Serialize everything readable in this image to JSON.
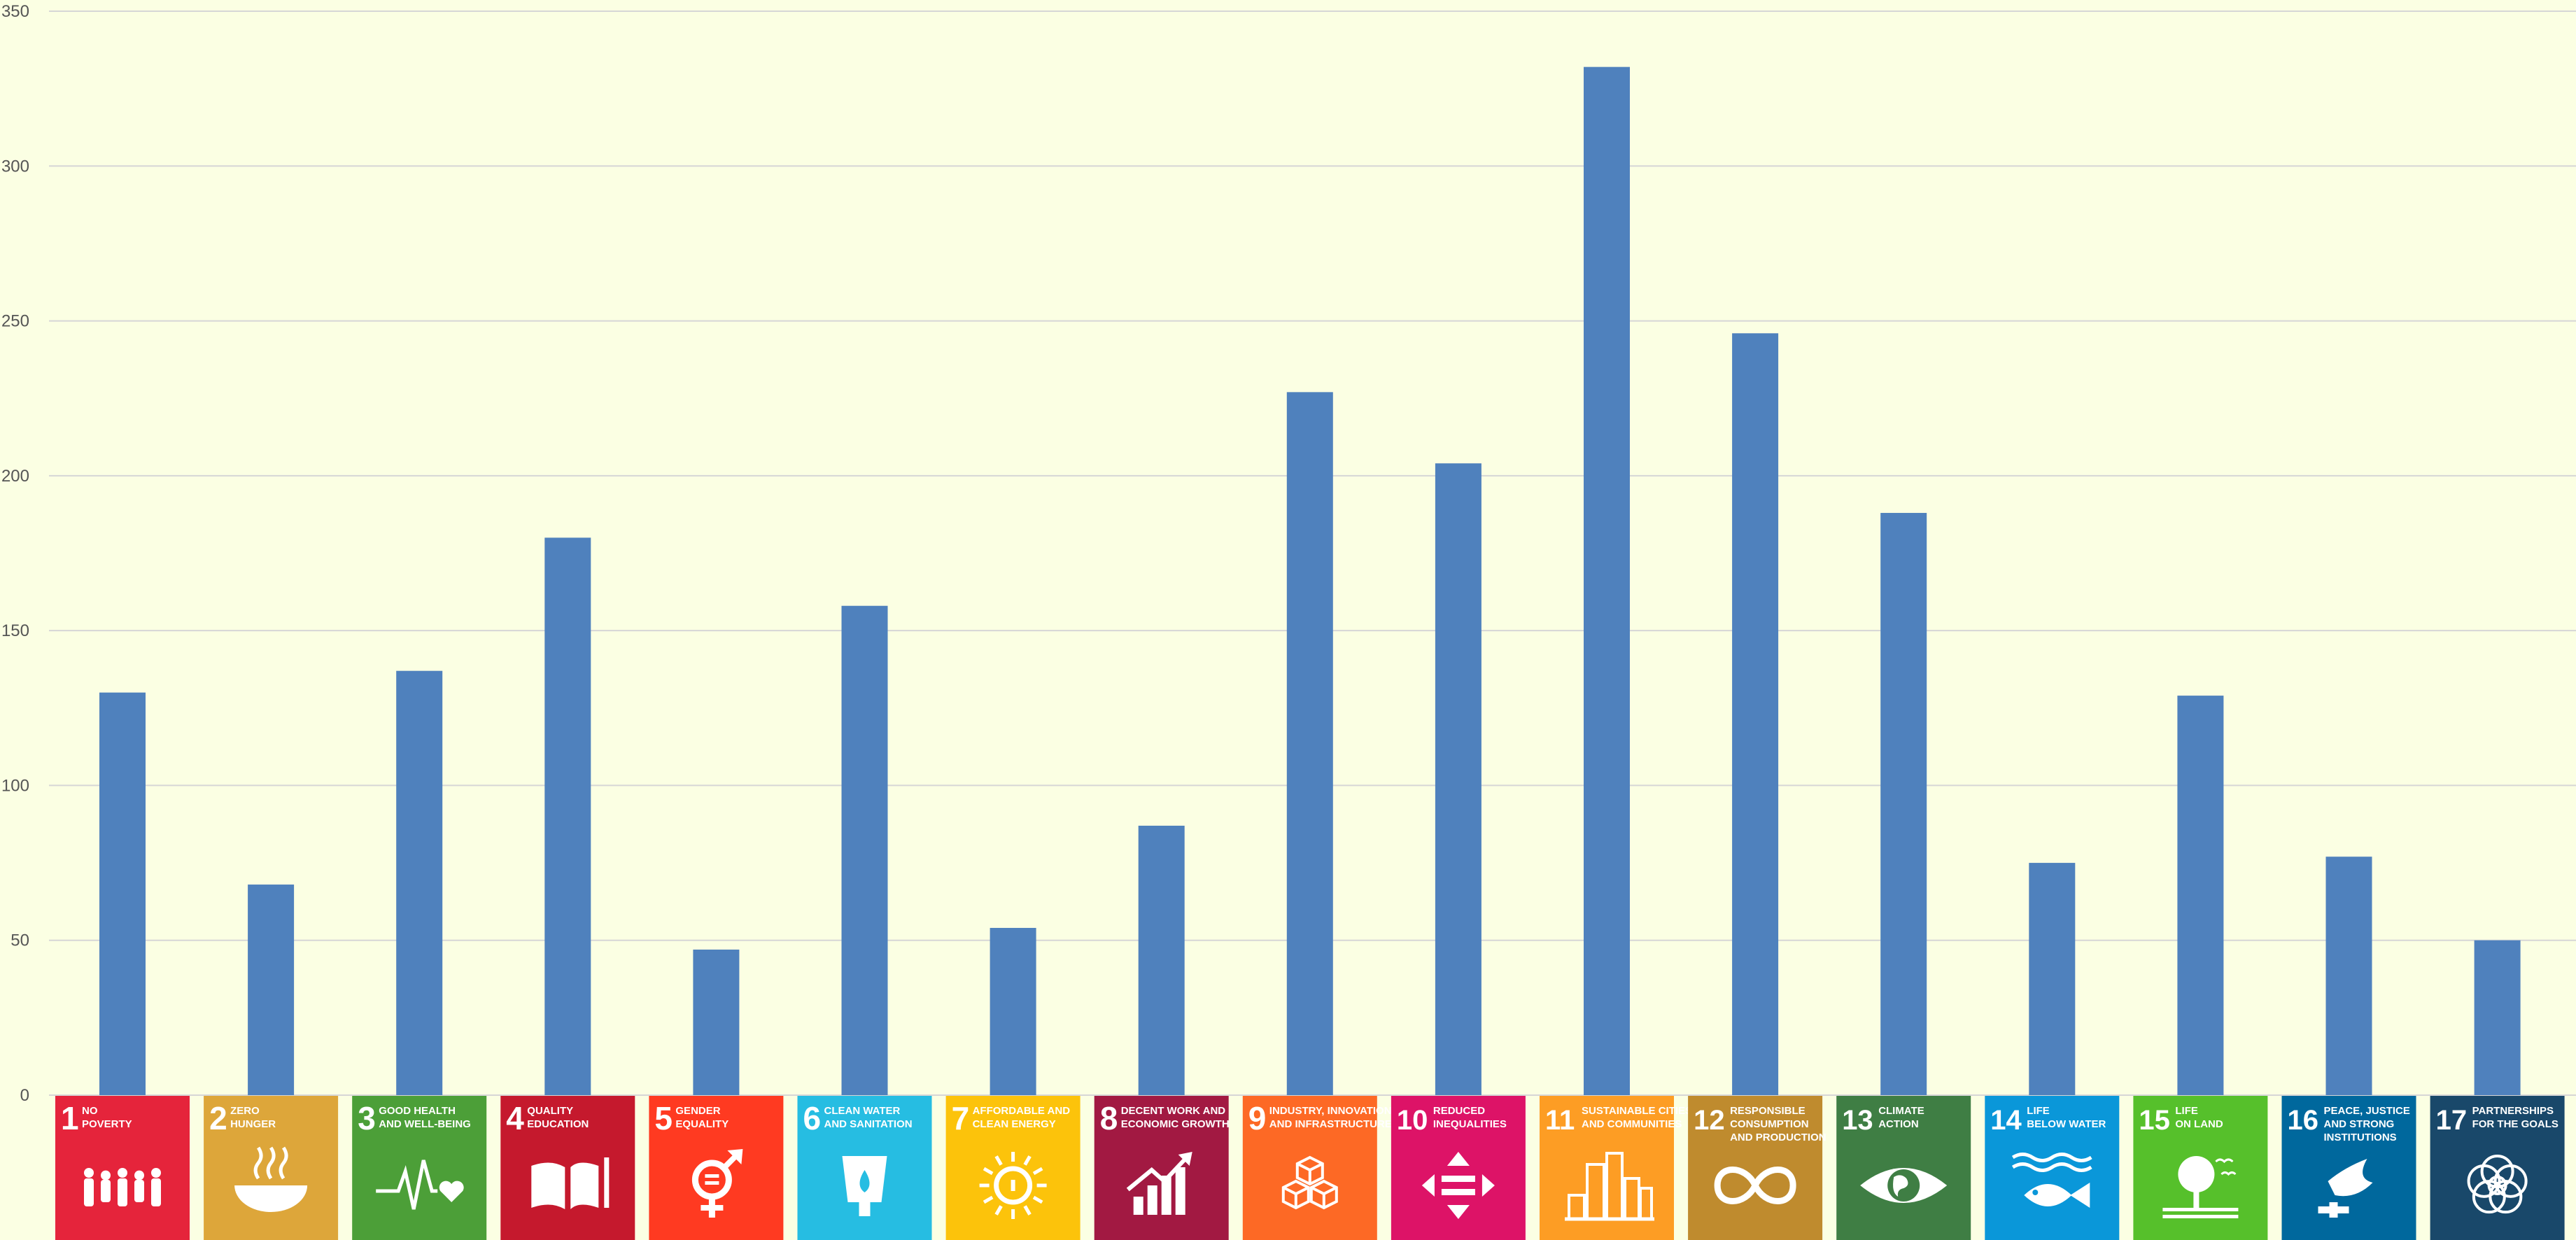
{
  "chart_data": {
    "type": "bar",
    "categories": [
      "1",
      "2",
      "3",
      "4",
      "5",
      "6",
      "7",
      "8",
      "9",
      "10",
      "11",
      "12",
      "13",
      "14",
      "15",
      "16",
      "17"
    ],
    "values": [
      130,
      68,
      137,
      180,
      47,
      158,
      54,
      87,
      227,
      204,
      332,
      246,
      188,
      75,
      129,
      77,
      50
    ],
    "ylim": [
      0,
      350
    ],
    "yticks": [
      0,
      50,
      100,
      150,
      200,
      250,
      300,
      350
    ],
    "grid": true,
    "bar_color": "#4f81bd"
  },
  "goals": [
    {
      "number": "1",
      "title": [
        "NO",
        "POVERTY"
      ],
      "color": "#e5243b",
      "icon": "family-icon"
    },
    {
      "number": "2",
      "title": [
        "ZERO",
        "HUNGER"
      ],
      "color": "#dda63a",
      "icon": "bowl-icon"
    },
    {
      "number": "3",
      "title": [
        "GOOD HEALTH",
        "AND WELL-BEING"
      ],
      "color": "#4c9f38",
      "icon": "heartbeat-icon"
    },
    {
      "number": "4",
      "title": [
        "QUALITY",
        "EDUCATION"
      ],
      "color": "#c5192d",
      "icon": "book-icon"
    },
    {
      "number": "5",
      "title": [
        "GENDER",
        "EQUALITY"
      ],
      "color": "#ff3a21",
      "icon": "gender-icon"
    },
    {
      "number": "6",
      "title": [
        "CLEAN WATER",
        "AND SANITATION"
      ],
      "color": "#26bde2",
      "icon": "water-drop-icon"
    },
    {
      "number": "7",
      "title": [
        "AFFORDABLE AND",
        "CLEAN ENERGY"
      ],
      "color": "#fcc30b",
      "icon": "sun-power-icon"
    },
    {
      "number": "8",
      "title": [
        "DECENT WORK AND",
        "ECONOMIC GROWTH"
      ],
      "color": "#a21942",
      "icon": "growth-chart-icon"
    },
    {
      "number": "9",
      "title": [
        "INDUSTRY, INNOVATION",
        "AND INFRASTRUCTURE"
      ],
      "color": "#fd6925",
      "icon": "cubes-icon"
    },
    {
      "number": "10",
      "title": [
        "REDUCED",
        "INEQUALITIES"
      ],
      "color": "#dd1367",
      "icon": "equality-arrows-icon"
    },
    {
      "number": "11",
      "title": [
        "SUSTAINABLE CITIES",
        "AND COMMUNITIES"
      ],
      "color": "#fd9d24",
      "icon": "city-icon"
    },
    {
      "number": "12",
      "title": [
        "RESPONSIBLE",
        "CONSUMPTION",
        "AND PRODUCTION"
      ],
      "color": "#bf8b2e",
      "icon": "infinity-icon"
    },
    {
      "number": "13",
      "title": [
        "CLIMATE",
        "ACTION"
      ],
      "color": "#3f7e44",
      "icon": "eye-globe-icon"
    },
    {
      "number": "14",
      "title": [
        "LIFE",
        "BELOW WATER"
      ],
      "color": "#0a97d9",
      "icon": "fish-icon"
    },
    {
      "number": "15",
      "title": [
        "LIFE",
        "ON LAND"
      ],
      "color": "#56c02b",
      "icon": "tree-icon"
    },
    {
      "number": "16",
      "title": [
        "PEACE, JUSTICE",
        "AND STRONG",
        "INSTITUTIONS"
      ],
      "color": "#00689d",
      "icon": "dove-gavel-icon"
    },
    {
      "number": "17",
      "title": [
        "PARTNERSHIPS",
        "FOR THE GOALS"
      ],
      "color": "#19486a",
      "icon": "rings-icon"
    }
  ]
}
